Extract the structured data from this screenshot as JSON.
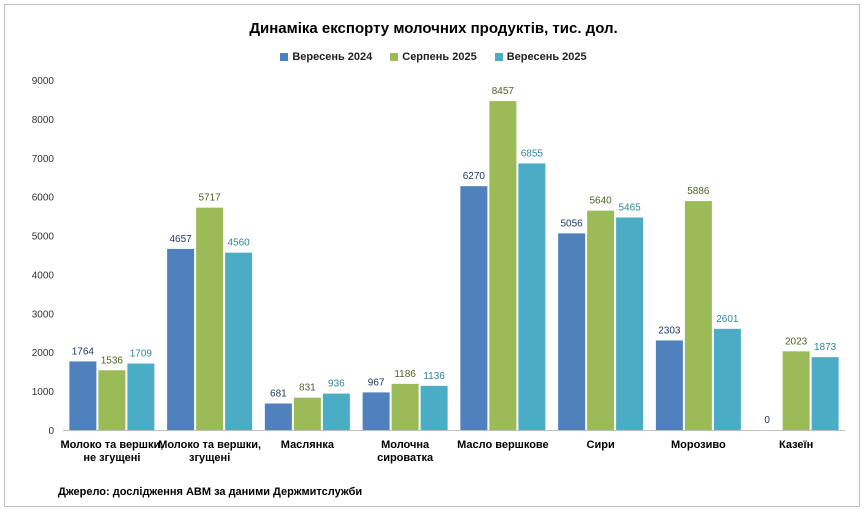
{
  "chart_data": {
    "type": "bar",
    "title": "Динаміка експорту молочних продуктів, тис. дол.",
    "categories": [
      "Молоко та вершки, не згущені",
      "Молоко та вершки, згущені",
      "Маслянка",
      "Молочна сироватка",
      "Масло вершкове",
      "Сири",
      "Морозиво",
      "Казеїн"
    ],
    "category_lines": [
      [
        "Молоко та вершки,",
        "не згущені"
      ],
      [
        "Молоко та вершки,",
        "згущені"
      ],
      [
        "Маслянка"
      ],
      [
        "Молочна",
        "сироватка"
      ],
      [
        "Масло вершкове"
      ],
      [
        "Сири"
      ],
      [
        "Морозиво"
      ],
      [
        "Казеїн"
      ]
    ],
    "series": [
      {
        "name": "Вересень 2024",
        "color": "#4F81BD",
        "label_color": "#1F3864",
        "values": [
          1764,
          4657,
          681,
          967,
          6270,
          5056,
          2303,
          0
        ]
      },
      {
        "name": "Серпень 2025",
        "color": "#9BBB59",
        "label_color": "#4F6228",
        "values": [
          1536,
          5717,
          831,
          1186,
          8457,
          5640,
          5886,
          2023
        ]
      },
      {
        "name": "Вересень 2025",
        "color": "#4BACC6",
        "label_color": "#31849B",
        "values": [
          1709,
          4560,
          936,
          1136,
          6855,
          5465,
          2601,
          1873
        ]
      }
    ],
    "ylim": [
      0,
      9000
    ],
    "yticks": [
      "0",
      "1000",
      "2000",
      "3000",
      "4000",
      "5000",
      "6000",
      "7000",
      "8000",
      "9000"
    ],
    "xlabel": "",
    "ylabel": "",
    "grid": false,
    "legend_position": "top"
  },
  "source": "Джерело: дослідження АВМ за даними Держмитслужби"
}
